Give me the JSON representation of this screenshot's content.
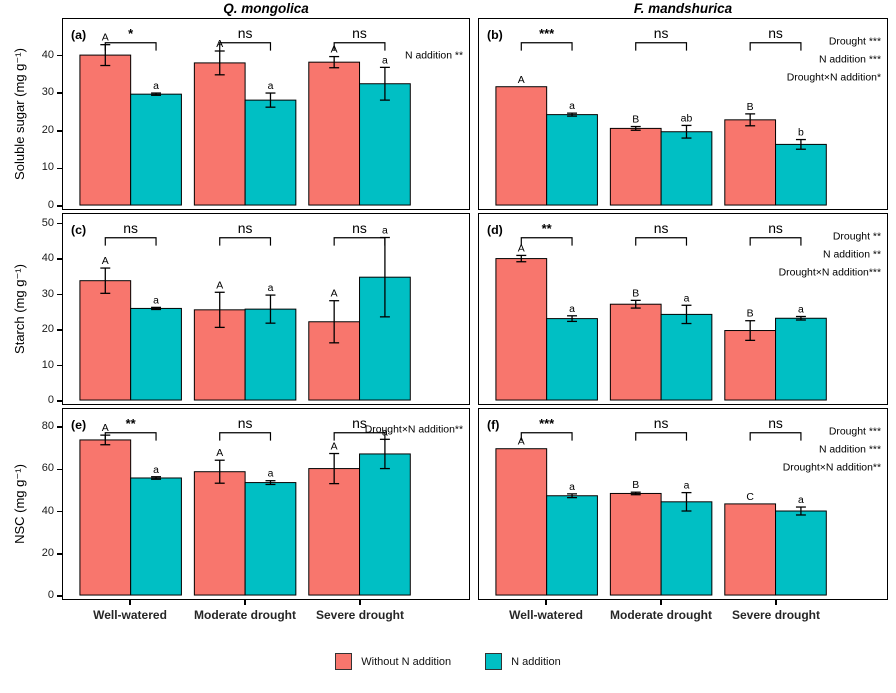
{
  "figure": {
    "column_titles": [
      "Q. mongolica",
      "F. mandshurica"
    ],
    "x_categories": [
      "Well-watered",
      "Moderate drought",
      "Severe drought"
    ],
    "legend": [
      {
        "label": "Without N addition",
        "color": "#F8766D"
      },
      {
        "label": "N addition",
        "color": "#00BFC4"
      }
    ],
    "colors": {
      "bar_stroke": "#000000",
      "background": "#ffffff"
    }
  },
  "chart_data": [
    {
      "type": "bar",
      "panel": "(a)",
      "row": 0,
      "col": 0,
      "facet_title": "Q. mongolica",
      "ylabel": "Soluble sugar (mg g⁻¹)",
      "ylim": [
        0,
        50
      ],
      "yticks": [
        0,
        10,
        20,
        30,
        40
      ],
      "categories": [
        "Well-watered",
        "Moderate drought",
        "Severe drought"
      ],
      "series": [
        {
          "name": "Without N addition",
          "values": [
            40.3,
            38.2,
            38.4
          ],
          "errors": [
            2.8,
            3.2,
            1.5
          ],
          "letters": [
            "A",
            "A",
            "A"
          ]
        },
        {
          "name": "N addition",
          "values": [
            29.8,
            28.2,
            32.6
          ],
          "errors": [
            0.3,
            1.9,
            4.4
          ],
          "letters": [
            "a",
            "a",
            "a"
          ]
        }
      ],
      "significance": [
        "*",
        "ns",
        "ns"
      ],
      "annotations": [
        "N addition **"
      ]
    },
    {
      "type": "bar",
      "panel": "(b)",
      "row": 0,
      "col": 1,
      "facet_title": "F. mandshurica",
      "ylabel": "Soluble sugar (mg g⁻¹)",
      "ylim": [
        0,
        50
      ],
      "yticks": [
        0,
        10,
        20,
        30,
        40
      ],
      "categories": [
        "Well-watered",
        "Moderate drought",
        "Severe drought"
      ],
      "series": [
        {
          "name": "Without N addition",
          "values": [
            31.8,
            20.6,
            22.9
          ],
          "errors": [
            0,
            0.5,
            1.6
          ],
          "letters": [
            "A",
            "B",
            "B"
          ]
        },
        {
          "name": "N addition",
          "values": [
            24.3,
            19.7,
            16.3
          ],
          "errors": [
            0.4,
            1.7,
            1.3
          ],
          "letters": [
            "a",
            "ab",
            "b"
          ]
        }
      ],
      "significance": [
        "***",
        "ns",
        "ns"
      ],
      "annotations": [
        "Drought ***",
        "N addition ***",
        "Drought×N addition*"
      ]
    },
    {
      "type": "bar",
      "panel": "(c)",
      "row": 1,
      "col": 0,
      "facet_title": "Q. mongolica",
      "ylabel": "Starch (mg g⁻¹)",
      "ylim": [
        0,
        53
      ],
      "yticks": [
        0,
        10,
        20,
        30,
        40,
        50
      ],
      "categories": [
        "Well-watered",
        "Moderate drought",
        "Severe drought"
      ],
      "series": [
        {
          "name": "Without N addition",
          "values": [
            34.0,
            25.7,
            22.3
          ],
          "errors": [
            3.6,
            5.0,
            6.0
          ],
          "letters": [
            "A",
            "A",
            "A"
          ]
        },
        {
          "name": "N addition",
          "values": [
            26.1,
            25.9,
            35.0
          ],
          "errors": [
            0.3,
            4.0,
            11.3
          ],
          "letters": [
            "a",
            "a",
            "a"
          ]
        }
      ],
      "significance": [
        "ns",
        "ns",
        "ns"
      ],
      "annotations": []
    },
    {
      "type": "bar",
      "panel": "(d)",
      "row": 1,
      "col": 1,
      "facet_title": "F. mandshurica",
      "ylabel": "Starch (mg g⁻¹)",
      "ylim": [
        0,
        53
      ],
      "yticks": [
        0,
        10,
        20,
        30,
        40,
        50
      ],
      "categories": [
        "Well-watered",
        "Moderate drought",
        "Severe drought"
      ],
      "series": [
        {
          "name": "Without N addition",
          "values": [
            40.3,
            27.3,
            19.8
          ],
          "errors": [
            0.9,
            1.1,
            2.8
          ],
          "letters": [
            "A",
            "B",
            "B"
          ]
        },
        {
          "name": "N addition",
          "values": [
            23.2,
            24.4,
            23.3
          ],
          "errors": [
            0.8,
            2.6,
            0.5
          ],
          "letters": [
            "a",
            "a",
            "a"
          ]
        }
      ],
      "significance": [
        "**",
        "ns",
        "ns"
      ],
      "annotations": [
        "Drought **",
        "N addition **",
        "Drought×N addition***"
      ]
    },
    {
      "type": "bar",
      "panel": "(e)",
      "row": 2,
      "col": 0,
      "facet_title": "Q. mongolica",
      "ylabel": "NSC (mg g⁻¹)",
      "ylim": [
        0,
        89
      ],
      "yticks": [
        0,
        20,
        40,
        60,
        80
      ],
      "categories": [
        "Well-watered",
        "Moderate drought",
        "Severe drought"
      ],
      "series": [
        {
          "name": "Without N addition",
          "values": [
            74.2,
            59.0,
            60.5
          ],
          "errors": [
            2.3,
            5.5,
            7.2
          ],
          "letters": [
            "A",
            "A",
            "A"
          ]
        },
        {
          "name": "N addition",
          "values": [
            56.0,
            53.8,
            67.5
          ],
          "errors": [
            0.6,
            0.9,
            7.0
          ],
          "letters": [
            "a",
            "a",
            "a"
          ]
        }
      ],
      "significance": [
        "**",
        "ns",
        "ns"
      ],
      "annotations": [
        "Drought×N addition**"
      ]
    },
    {
      "type": "bar",
      "panel": "(f)",
      "row": 2,
      "col": 1,
      "facet_title": "F. mandshurica",
      "ylabel": "NSC (mg g⁻¹)",
      "ylim": [
        0,
        89
      ],
      "yticks": [
        0,
        20,
        40,
        60,
        80
      ],
      "categories": [
        "Well-watered",
        "Moderate drought",
        "Severe drought"
      ],
      "series": [
        {
          "name": "Without N addition",
          "values": [
            70.0,
            48.6,
            43.6
          ],
          "errors": [
            0,
            0.6,
            0
          ],
          "letters": [
            "A",
            "B",
            "C"
          ]
        },
        {
          "name": "N addition",
          "values": [
            47.5,
            44.6,
            40.2
          ],
          "errors": [
            0.9,
            4.4,
            1.9
          ],
          "letters": [
            "a",
            "a",
            "a"
          ]
        }
      ],
      "significance": [
        "***",
        "ns",
        "ns"
      ],
      "annotations": [
        "Drought ***",
        "N addition ***",
        "Drought×N addition**"
      ]
    }
  ]
}
